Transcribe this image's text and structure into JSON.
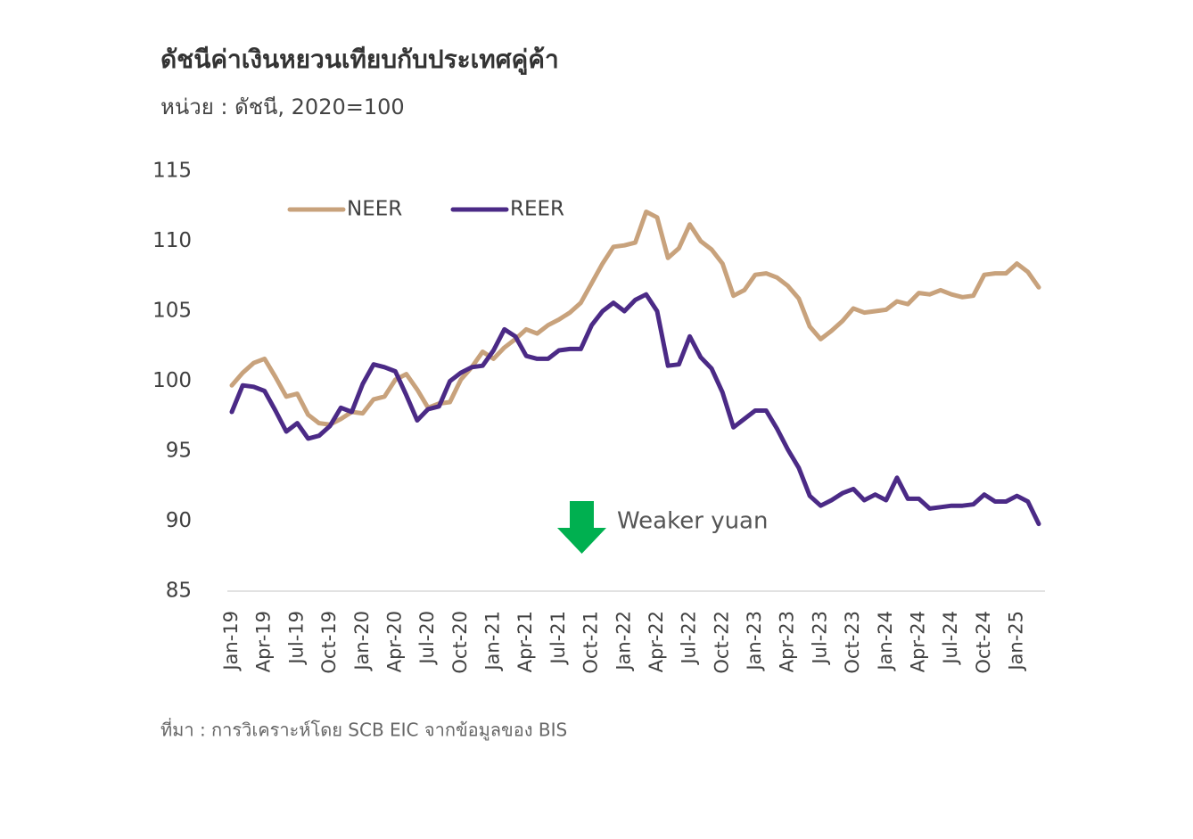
{
  "chart_data": {
    "type": "line",
    "title": "ดัชนีค่าเงินหยวนเทียบกับประเทศคู่ค้า",
    "subtitle": "หน่วย : ดัชนี, 2020=100",
    "source": "ที่มา : การวิเคราะห์โดย SCB EIC จากข้อมูลของ BIS",
    "annotation": "Weaker yuan",
    "legend": "upper left",
    "grid": false,
    "ylim": [
      85,
      115
    ],
    "yticks": [
      85,
      90,
      95,
      100,
      105,
      110,
      115
    ],
    "categories": [
      "Jan-19",
      null,
      null,
      "Apr-19",
      null,
      null,
      "Jul-19",
      null,
      null,
      "Oct-19",
      null,
      null,
      "Jan-20",
      null,
      null,
      "Apr-20",
      null,
      null,
      "Jul-20",
      null,
      null,
      "Oct-20",
      null,
      null,
      "Jan-21",
      null,
      null,
      "Apr-21",
      null,
      null,
      "Jul-21",
      null,
      null,
      "Oct-21",
      null,
      null,
      "Jan-22",
      null,
      null,
      "Apr-22",
      null,
      null,
      "Jul-22",
      null,
      null,
      "Oct-22",
      null,
      null,
      "Jan-23",
      null,
      null,
      "Apr-23",
      null,
      null,
      "Jul-23",
      null,
      null,
      "Oct-23",
      null,
      null,
      "Jan-24",
      null,
      null,
      "Apr-24",
      null,
      null,
      "Jul-24",
      null,
      null,
      "Oct-24",
      null,
      null,
      "Jan-25",
      null,
      null
    ],
    "series": [
      {
        "name": "NEER",
        "color": "#c8a27c",
        "values": [
          99.7,
          100.6,
          101.3,
          101.6,
          100.3,
          98.9,
          99.1,
          97.6,
          97.0,
          96.9,
          97.3,
          97.8,
          97.7,
          98.7,
          98.9,
          100.1,
          100.5,
          99.4,
          98.1,
          98.4,
          98.5,
          100.1,
          101.0,
          102.1,
          101.6,
          102.4,
          103.0,
          103.7,
          103.4,
          104.0,
          104.4,
          104.9,
          105.6,
          107.0,
          108.4,
          109.6,
          109.7,
          109.9,
          112.1,
          111.7,
          108.8,
          109.5,
          111.2,
          110.0,
          109.4,
          108.4,
          106.1,
          106.5,
          107.6,
          107.7,
          107.4,
          106.8,
          105.9,
          103.9,
          103.0,
          103.6,
          104.3,
          105.2,
          104.9,
          105.0,
          105.1,
          105.7,
          105.5,
          106.3,
          106.2,
          106.5,
          106.2,
          106.0,
          106.1,
          107.6,
          107.7,
          107.7,
          108.4,
          107.8,
          106.7
        ]
      },
      {
        "name": "REER",
        "color": "#4b2a86",
        "values": [
          97.8,
          99.7,
          99.6,
          99.3,
          97.9,
          96.4,
          97.0,
          95.9,
          96.1,
          96.8,
          98.1,
          97.8,
          99.8,
          101.2,
          101.0,
          100.7,
          99.0,
          97.2,
          98.0,
          98.2,
          100.0,
          100.6,
          101.0,
          101.1,
          102.2,
          103.7,
          103.2,
          101.8,
          101.6,
          101.6,
          102.2,
          102.3,
          102.3,
          104.0,
          105.0,
          105.6,
          105.0,
          105.8,
          106.2,
          105.0,
          101.1,
          101.2,
          103.2,
          101.7,
          100.9,
          99.2,
          96.7,
          97.3,
          97.9,
          97.9,
          96.6,
          95.1,
          93.8,
          91.8,
          91.1,
          91.5,
          92.0,
          92.3,
          91.5,
          91.9,
          91.5,
          93.1,
          91.6,
          91.6,
          90.9,
          91.0,
          91.1,
          91.1,
          91.2,
          91.9,
          91.4,
          91.4,
          91.8,
          91.4,
          89.8
        ]
      }
    ]
  }
}
